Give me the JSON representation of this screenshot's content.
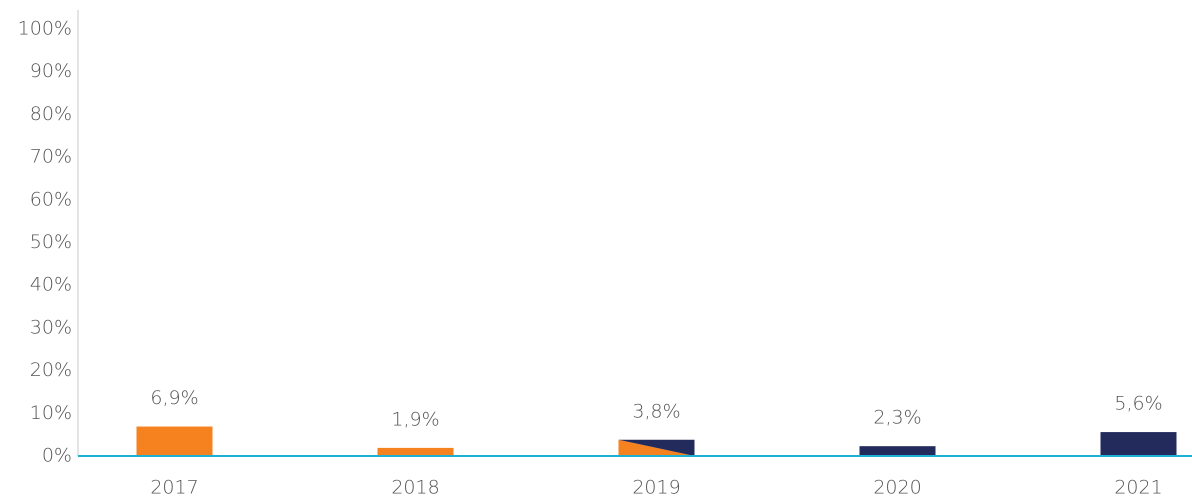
{
  "chart_data": {
    "type": "bar",
    "categories": [
      "2017",
      "2018",
      "2019",
      "2020",
      "2021"
    ],
    "values": [
      6.9,
      1.9,
      3.8,
      2.3,
      5.6
    ],
    "value_labels": [
      "6,9%",
      "1,9%",
      "3,8%",
      "2,3%",
      "5,6%"
    ],
    "colors": [
      "#f5821f",
      "#f5821f",
      [
        "#f5821f",
        "#232a5c"
      ],
      "#232a5c",
      "#232a5c"
    ],
    "ylim": [
      0,
      100
    ],
    "yticks": [
      {
        "value": 0,
        "label": "0%"
      },
      {
        "value": 10,
        "label": "10%"
      },
      {
        "value": 20,
        "label": "20%"
      },
      {
        "value": 30,
        "label": "30%"
      },
      {
        "value": 40,
        "label": "40%"
      },
      {
        "value": 50,
        "label": "50%"
      },
      {
        "value": 60,
        "label": "60%"
      },
      {
        "value": 70,
        "label": "70%"
      },
      {
        "value": 80,
        "label": "80%"
      },
      {
        "value": 90,
        "label": "90%"
      },
      {
        "value": 100,
        "label": "100%"
      }
    ],
    "grid": false
  }
}
